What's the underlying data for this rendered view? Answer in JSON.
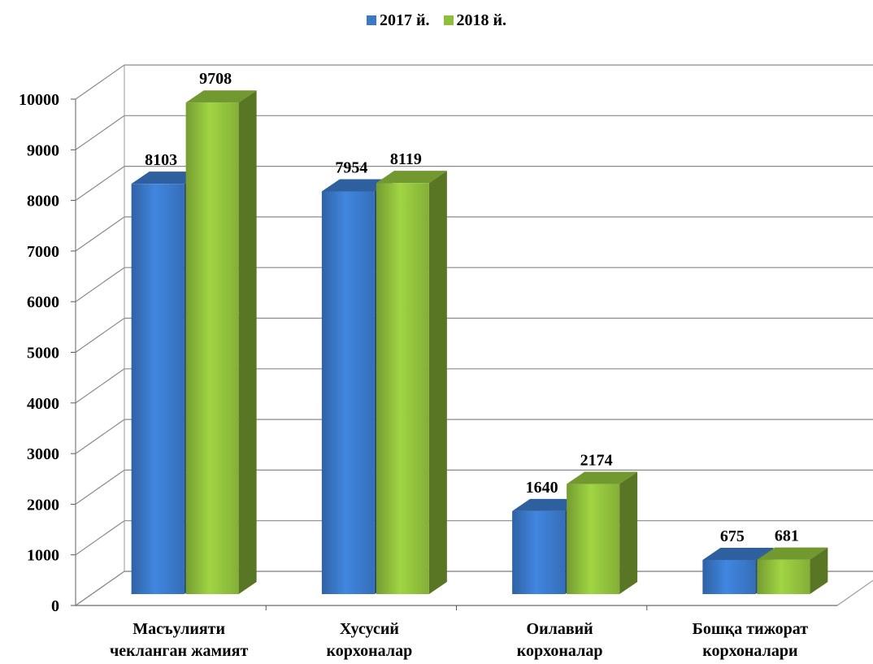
{
  "chart_data": {
    "type": "bar",
    "categories": [
      [
        "Масъулияти",
        "чекланган жамият"
      ],
      [
        "Хусусий",
        "корхоналар"
      ],
      [
        "Оилавий",
        "корхоналар"
      ],
      [
        "Бошқа тижорат",
        "корхоналари"
      ]
    ],
    "series": [
      {
        "name": "2017 й.",
        "values": [
          8103,
          7954,
          1640,
          675
        ],
        "color": "#3a78c8"
      },
      {
        "name": "2018 й.",
        "values": [
          9708,
          8119,
          2174,
          681
        ],
        "color": "#8fbe3c"
      }
    ],
    "ylim": [
      0,
      10000
    ],
    "yticks": [
      0,
      1000,
      2000,
      3000,
      4000,
      5000,
      6000,
      7000,
      8000,
      9000,
      10000
    ],
    "grid": true,
    "legend_position": "top-center",
    "data_labels": true,
    "style": "3d-clustered-column"
  }
}
